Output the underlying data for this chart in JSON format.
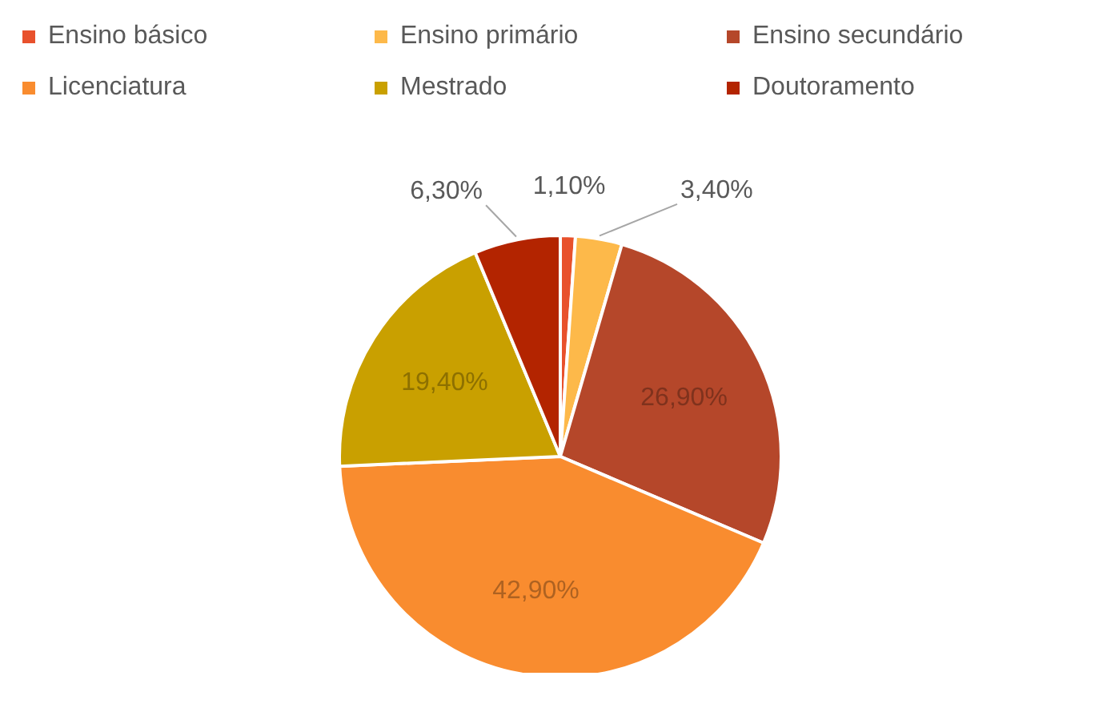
{
  "chart_data": {
    "type": "pie",
    "categories": [
      "Ensino básico",
      "Ensino primário",
      "Ensino secundário",
      "Licenciatura",
      "Mestrado",
      "Doutoramento"
    ],
    "values": [
      1.1,
      3.4,
      26.9,
      42.9,
      19.4,
      6.3
    ],
    "colors": [
      "#e8512c",
      "#fdb94a",
      "#b5472a",
      "#f98c2f",
      "#c9a000",
      "#b32400"
    ],
    "value_labels": [
      "1,10%",
      "3,40%",
      "26,90%",
      "42,90%",
      "19,40%",
      "6,30%"
    ],
    "legend": "top"
  }
}
